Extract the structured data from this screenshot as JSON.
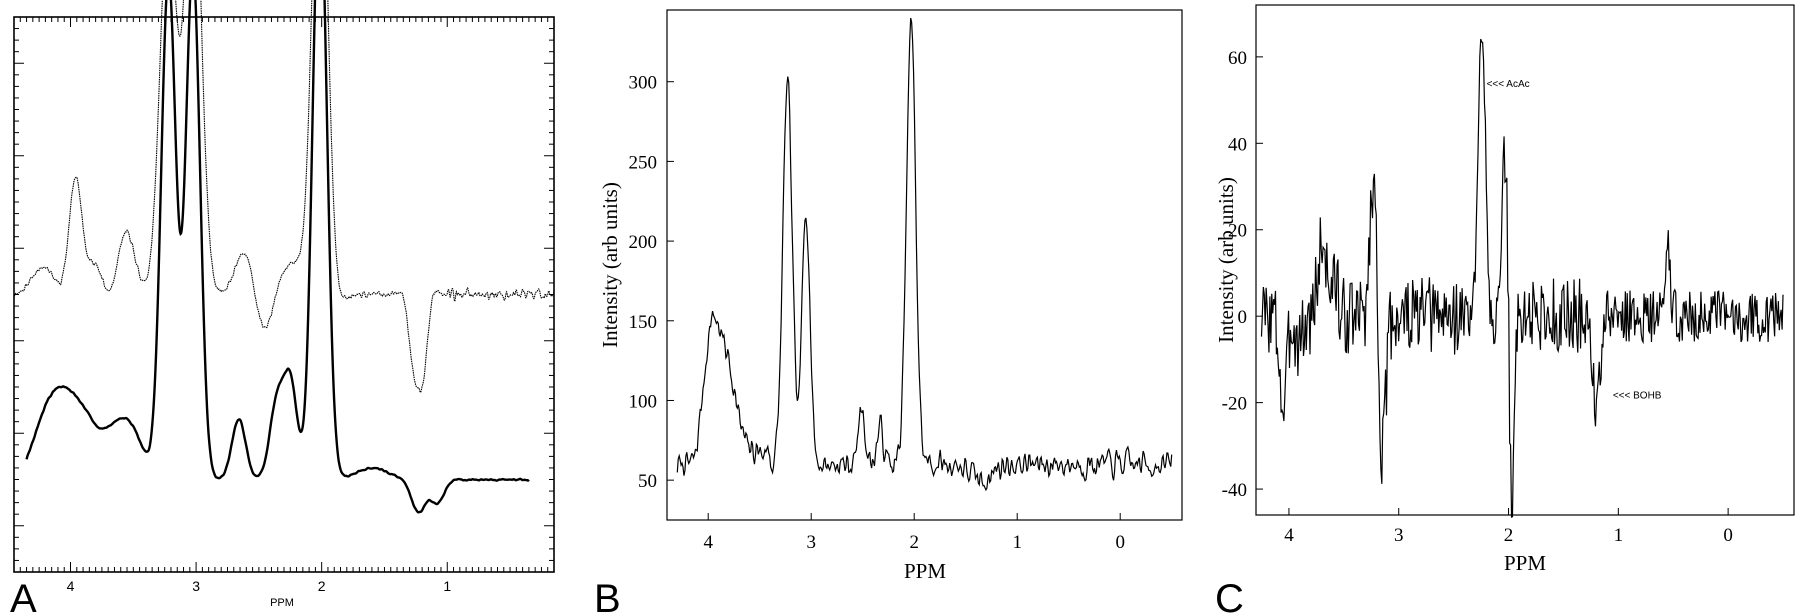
{
  "chart_data": [
    {
      "panel": "A",
      "type": "line",
      "xlabel": "PPM",
      "ylabel": "",
      "x_reversed": true,
      "xlim": [
        4.45,
        0.15
      ],
      "ylim": [
        -1.0,
        11.0
      ],
      "xticks": [
        4,
        3,
        2,
        1
      ],
      "y_axis_ticks_labeled": false,
      "grid": false,
      "series": [
        {
          "style": "dotted-thin",
          "baseline": 5.0,
          "peaks": [
            {
              "ppm": 4.22,
              "amp": 0.6,
              "width": 0.015
            },
            {
              "ppm": 3.99,
              "amp": -0.8,
              "width": 0.006
            },
            {
              "ppm": 3.96,
              "amp": 3.9,
              "width": 0.006
            },
            {
              "ppm": 3.93,
              "amp": -0.9,
              "width": 0.006
            },
            {
              "ppm": 3.83,
              "amp": 0.4,
              "width": 0.01
            },
            {
              "ppm": 3.77,
              "amp": 0.5,
              "width": 0.01
            },
            {
              "ppm": 3.7,
              "amp": -0.5,
              "width": 0.01
            },
            {
              "ppm": 3.56,
              "amp": 1.4,
              "width": 0.01
            },
            {
              "ppm": 3.24,
              "amp": 4.3,
              "width": 0.008
            },
            {
              "ppm": 3.2,
              "amp": 4.6,
              "width": 0.008
            },
            {
              "ppm": 3.13,
              "amp": -0.7,
              "width": 0.008
            },
            {
              "ppm": 3.04,
              "amp": 5.6,
              "width": 0.008
            },
            {
              "ppm": 3.01,
              "amp": 5.0,
              "width": 0.008
            },
            {
              "ppm": 2.65,
              "amp": 0.5,
              "width": 0.008
            },
            {
              "ppm": 2.57,
              "amp": 0.8,
              "width": 0.008
            },
            {
              "ppm": 2.51,
              "amp": -0.6,
              "width": 0.008
            },
            {
              "ppm": 2.44,
              "amp": -0.5,
              "width": 0.008
            },
            {
              "ppm": 2.3,
              "amp": 0.4,
              "width": 0.008
            },
            {
              "ppm": 2.2,
              "amp": 0.5,
              "width": 0.008
            },
            {
              "ppm": 2.03,
              "amp": 6.5,
              "width": 0.007
            },
            {
              "ppm": 1.99,
              "amp": 5.7,
              "width": 0.007
            },
            {
              "ppm": 1.95,
              "amp": -0.9,
              "width": 0.01
            },
            {
              "ppm": 1.3,
              "amp": 0.6,
              "width": 0.005
            },
            {
              "ppm": 1.27,
              "amp": -2.1,
              "width": 0.004
            },
            {
              "ppm": 1.23,
              "amp": 0.5,
              "width": 0.004
            },
            {
              "ppm": 1.19,
              "amp": -2.3,
              "width": 0.004
            },
            {
              "ppm": 1.15,
              "amp": 0.7,
              "width": 0.004
            }
          ]
        },
        {
          "style": "bold",
          "baseline": 1.0,
          "peaks": [
            {
              "ppm": 4.22,
              "amp": 1.0,
              "width": 0.02
            },
            {
              "ppm": 4.07,
              "amp": 1.4,
              "width": 0.02
            },
            {
              "ppm": 3.9,
              "amp": 1.2,
              "width": 0.02
            },
            {
              "ppm": 3.68,
              "amp": 0.8,
              "width": 0.02
            },
            {
              "ppm": 3.52,
              "amp": 1.0,
              "width": 0.02
            },
            {
              "ppm": 3.24,
              "amp": 5.7,
              "width": 0.006
            },
            {
              "ppm": 3.2,
              "amp": 5.9,
              "width": 0.006
            },
            {
              "ppm": 3.04,
              "amp": 5.9,
              "width": 0.006
            },
            {
              "ppm": 3.01,
              "amp": 5.6,
              "width": 0.006
            },
            {
              "ppm": 2.66,
              "amp": 1.3,
              "width": 0.006
            },
            {
              "ppm": 2.36,
              "amp": 1.6,
              "width": 0.006
            },
            {
              "ppm": 2.25,
              "amp": 2.1,
              "width": 0.006
            },
            {
              "ppm": 2.03,
              "amp": 6.8,
              "width": 0.006
            },
            {
              "ppm": 2.0,
              "amp": 6.7,
              "width": 0.006
            },
            {
              "ppm": 1.6,
              "amp": 0.25,
              "width": 0.03
            },
            {
              "ppm": 1.23,
              "amp": -0.7,
              "width": 0.006
            },
            {
              "ppm": 1.08,
              "amp": -0.5,
              "width": 0.006
            }
          ]
        }
      ]
    },
    {
      "panel": "B",
      "type": "line",
      "xlabel": "PPM",
      "ylabel": "Intensity (arb units)",
      "x_reversed": true,
      "xlim": [
        4.4,
        -0.6
      ],
      "ylim": [
        25,
        345
      ],
      "xticks": [
        4,
        3,
        2,
        1,
        0
      ],
      "yticks": [
        50,
        100,
        150,
        200,
        250,
        300
      ],
      "grid": false,
      "series": [
        {
          "baseline": 60,
          "peaks": [
            {
              "ppm": 3.97,
              "amp": 70,
              "width": 0.01
            },
            {
              "ppm": 3.82,
              "amp": 55,
              "width": 0.015
            },
            {
              "ppm": 3.23,
              "amp": 240,
              "width": 0.004
            },
            {
              "ppm": 3.05,
              "amp": 162,
              "width": 0.003
            },
            {
              "ppm": 2.51,
              "amp": 36,
              "width": 0.002
            },
            {
              "ppm": 2.33,
              "amp": 23,
              "width": 0.002
            },
            {
              "ppm": 2.03,
              "amp": 277,
              "width": 0.004
            }
          ]
        }
      ]
    },
    {
      "panel": "C",
      "type": "line",
      "xlabel": "PPM",
      "ylabel": "Intensity (arb units)",
      "x_reversed": true,
      "xlim": [
        4.3,
        -0.6
      ],
      "ylim": [
        -46,
        72
      ],
      "xticks": [
        4,
        3,
        2,
        1,
        0
      ],
      "yticks": [
        -40,
        -20,
        0,
        20,
        40,
        60
      ],
      "grid": false,
      "annotations": [
        {
          "text": "<<< AcAc",
          "x": 2.2,
          "y": 53
        },
        {
          "text": "<<< BOHB",
          "x": 1.05,
          "y": -19
        }
      ],
      "series": [
        {
          "baseline": 0,
          "peaks": [
            {
              "ppm": 4.05,
              "amp": -22,
              "width": 0.002
            },
            {
              "ppm": 3.7,
              "amp": 14,
              "width": 0.003
            },
            {
              "ppm": 3.23,
              "amp": 33,
              "width": 0.002
            },
            {
              "ppm": 3.15,
              "amp": -33,
              "width": 0.002
            },
            {
              "ppm": 2.24,
              "amp": 70,
              "width": 0.002
            },
            {
              "ppm": 2.03,
              "amp": 40,
              "width": 0.001
            },
            {
              "ppm": 1.97,
              "amp": -43,
              "width": 0.001
            },
            {
              "ppm": 1.2,
              "amp": -22,
              "width": 0.002
            },
            {
              "ppm": 0.55,
              "amp": 16,
              "width": 0.001
            }
          ]
        }
      ]
    }
  ]
}
